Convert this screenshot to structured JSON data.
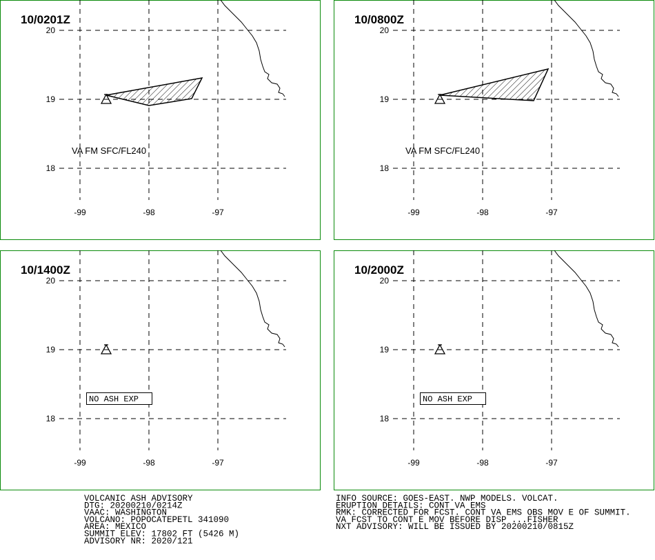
{
  "panels": [
    {
      "time": "10/0201Z",
      "lat_labels": [
        20,
        19,
        18
      ],
      "lon_labels": [
        -99,
        -98,
        -97
      ],
      "annotation": "VA FM SFC/FL240"
    },
    {
      "time": "10/0800Z",
      "lat_labels": [
        20,
        19,
        18
      ],
      "lon_labels": [
        -99,
        -98,
        -97
      ],
      "annotation": "VA FM SFC/FL240"
    },
    {
      "time": "10/1400Z",
      "lat_labels": [
        20,
        19,
        18
      ],
      "lon_labels": [
        -99,
        -98,
        -97
      ],
      "annotation": "NO ASH EXP"
    },
    {
      "time": "10/2000Z",
      "lat_labels": [
        20,
        19,
        18
      ],
      "lon_labels": [
        -99,
        -98,
        -97
      ],
      "annotation": "NO ASH EXP"
    }
  ],
  "advisory": {
    "left": [
      "VOLCANIC ASH ADVISORY",
      "DTG: 20200210/0214Z",
      "VAAC: WASHINGTON",
      "VOLCANO: POPOCATEPETL 341090",
      "AREA: MEXICO",
      "SUMMIT ELEV: 17802 FT (5426 M)",
      "ADVISORY NR: 2020/121"
    ],
    "right": [
      "INFO SOURCE: GOES-EAST. NWP MODELS. VOLCAT.",
      "ERUPTION DETAILS: CONT VA EMS",
      "RMK: CORRECTED FOR FCST. CONT VA EMS OBS MOV E OF SUMMIT.",
      "VA FCST TO CONT E MOV BEFORE DISP ...FISHER",
      "NXT ADVISORY: WILL BE ISSUED BY 20200210/0815Z"
    ]
  }
}
